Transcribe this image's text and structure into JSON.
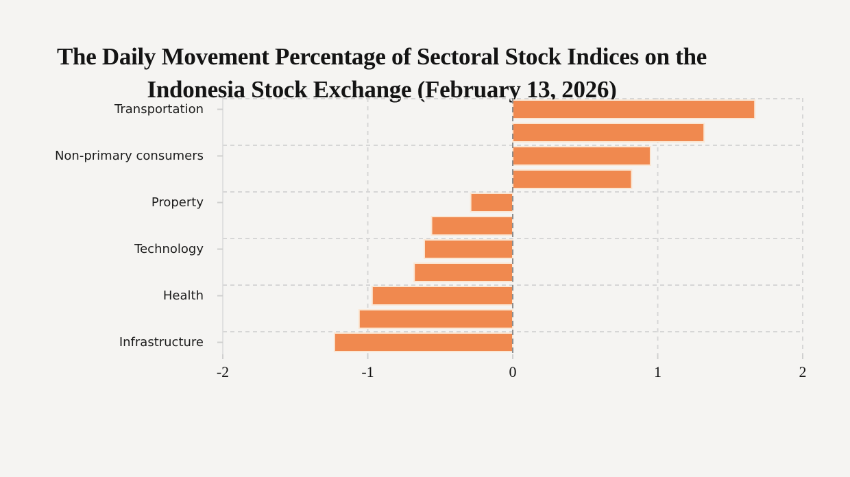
{
  "page": {
    "background": "#f5f4f2"
  },
  "title": {
    "line1": "The Daily Movement Percentage of Sectoral Stock Indices on the",
    "line2": "Indonesia Stock Exchange (February 13, 2026)"
  },
  "chart_data": {
    "type": "bar",
    "orientation": "horizontal",
    "title": "The Daily Movement Percentage of Sectoral Stock Indices on the Indonesia Stock Exchange (February 13, 2026)",
    "bars": [
      {
        "label": "Transportation",
        "value": 1.67
      },
      {
        "label": "",
        "value": 1.32
      },
      {
        "label": "Non-primary consumers",
        "value": 0.95
      },
      {
        "label": "",
        "value": 0.82
      },
      {
        "label": "Property",
        "value": -0.29
      },
      {
        "label": "",
        "value": -0.56
      },
      {
        "label": "Technology",
        "value": -0.61
      },
      {
        "label": "",
        "value": -0.68
      },
      {
        "label": "Health",
        "value": -0.97
      },
      {
        "label": "",
        "value": -1.06
      },
      {
        "label": "Infrastructure",
        "value": -1.23
      }
    ],
    "y_tick_labels": [
      "Transportation",
      "Non-primary consumers",
      "Property",
      "Technology",
      "Health",
      "Infrastructure"
    ],
    "x_tick_labels": [
      "-2",
      "-1",
      "0",
      "1",
      "2"
    ],
    "x_tick_values": [
      -2,
      -1,
      0,
      1,
      2
    ],
    "xlim": [
      -2,
      2
    ],
    "grid": "dashed",
    "legend": "none",
    "xlabel": "",
    "ylabel": "",
    "colors": {
      "bar": "#F0894F",
      "bar_edge": "#FAE7D5",
      "grid_light": "#D6D6D6",
      "zero_line": "#8D8D8D",
      "axis_spine": "#D9D9D9",
      "tick_mark": "#CFCFCF",
      "text": "#1B1B1B"
    }
  }
}
